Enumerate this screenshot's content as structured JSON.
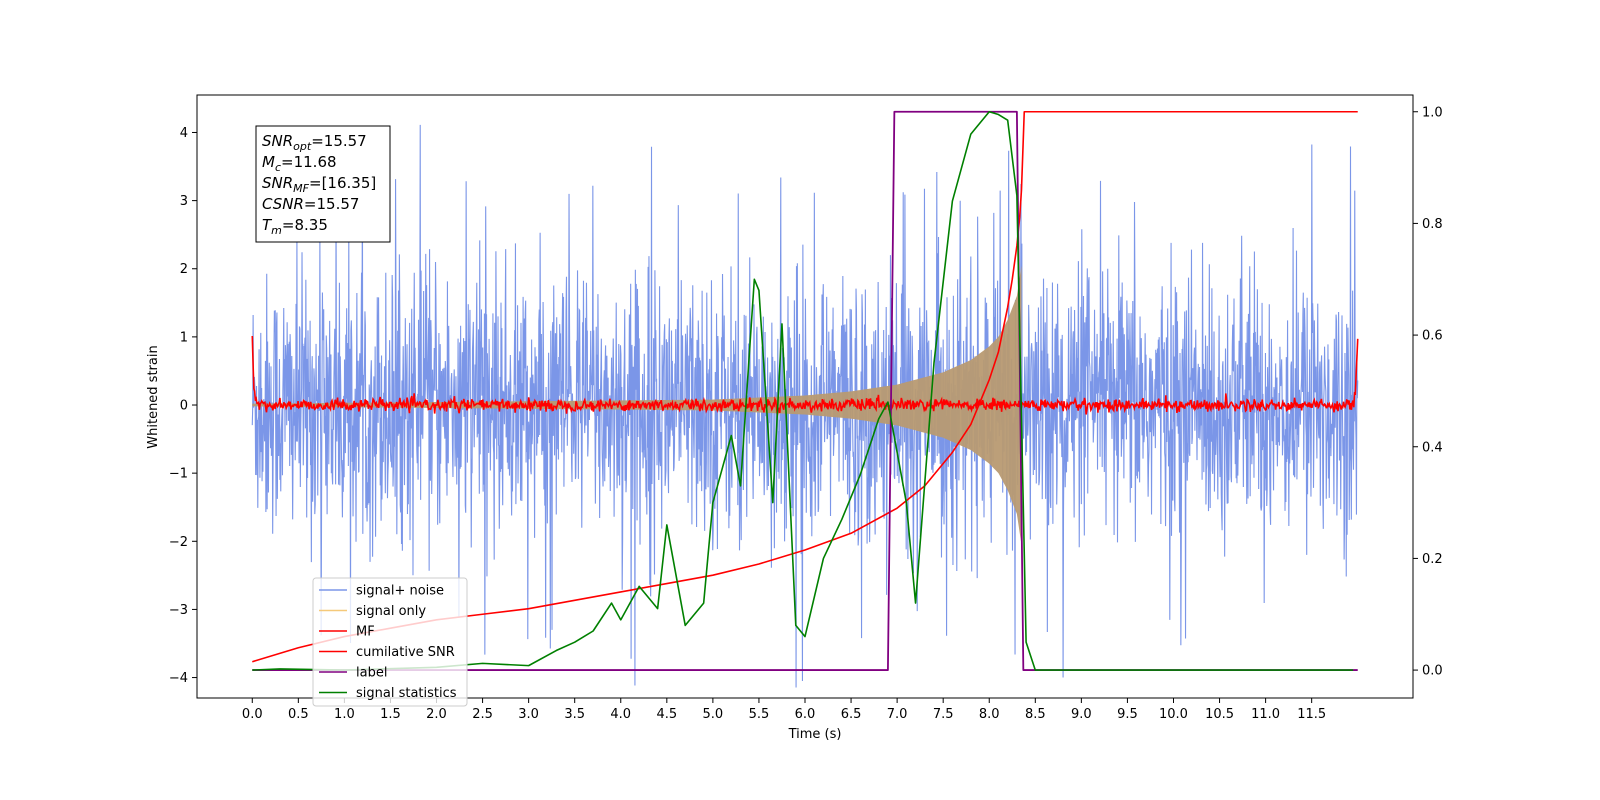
{
  "chart_data": {
    "type": "line",
    "xlabel": "Time (s)",
    "ylabel": "Whitened strain",
    "xlim": [
      -0.6,
      12.6
    ],
    "ylim": [
      -4.3,
      4.55
    ],
    "ylim_right": [
      -0.05,
      1.03
    ],
    "x_ticks": [
      0.0,
      0.5,
      1.0,
      1.5,
      2.0,
      2.5,
      3.0,
      3.5,
      4.0,
      4.5,
      5.0,
      5.5,
      6.0,
      6.5,
      7.0,
      7.5,
      8.0,
      8.5,
      9.0,
      9.5,
      10.0,
      10.5,
      11.0,
      11.5
    ],
    "x_tick_labels": [
      "0.0",
      "0.5",
      "1.0",
      "1.5",
      "2.0",
      "2.5",
      "3.0",
      "3.5",
      "4.0",
      "4.5",
      "5.0",
      "5.5",
      "6.0",
      "6.5",
      "7.0",
      "7.5",
      "8.0",
      "8.5",
      "9.0",
      "9.5",
      "10.0",
      "10.5",
      "11.0",
      "11.5"
    ],
    "y_ticks": [
      -4,
      -3,
      -2,
      -1,
      0,
      1,
      2,
      3,
      4
    ],
    "y_tick_labels": [
      "−4",
      "−3",
      "−2",
      "−1",
      "0",
      "1",
      "2",
      "3",
      "4"
    ],
    "y_ticks_right": [
      0.0,
      0.2,
      0.4,
      0.6,
      0.8,
      1.0
    ],
    "y_tick_labels_right": [
      "0.0",
      "0.2",
      "0.4",
      "0.6",
      "0.8",
      "1.0"
    ],
    "grid": false,
    "legend_position": "lower-left",
    "annotation": {
      "lines": [
        {
          "base": "SNR",
          "sub": "opt",
          "value": "=15.57"
        },
        {
          "base": "M",
          "sub": "c",
          "value": "=11.68"
        },
        {
          "base": "SNR",
          "sub": "MF",
          "value": "=[16.35]"
        },
        {
          "base": "CSNR",
          "sub": "",
          "value": "=15.57"
        },
        {
          "base": "T",
          "sub": "m",
          "value": "=8.35"
        }
      ]
    },
    "series": [
      {
        "name": "signal+ noise",
        "axis": "left",
        "color": "#7b96e8",
        "style": "noise-band",
        "x_range": [
          0.0,
          12.0
        ],
        "amplitude_typical": 1.8,
        "amplitude_peak": 4.15
      },
      {
        "name": "signal only",
        "axis": "left",
        "color": "#b89a72",
        "style": "chirp-envelope",
        "x": [
          0.0,
          5.0,
          6.0,
          6.5,
          7.0,
          7.5,
          7.8,
          8.0,
          8.1,
          8.2,
          8.3,
          8.35
        ],
        "envelope": [
          0.02,
          0.08,
          0.14,
          0.2,
          0.3,
          0.48,
          0.66,
          0.86,
          1.0,
          1.25,
          1.6,
          2.05
        ]
      },
      {
        "name": "MF",
        "axis": "left",
        "color": "#ff0000",
        "style": "noisy-flat",
        "x": [
          0.0,
          0.02,
          0.05,
          11.95,
          11.98,
          12.0
        ],
        "y": [
          1.0,
          0.2,
          0.0,
          0.0,
          0.3,
          0.95
        ]
      },
      {
        "name": "cumilative SNR",
        "axis": "right",
        "color": "#ff0000",
        "x": [
          0.0,
          0.5,
          1.0,
          1.5,
          2.0,
          2.5,
          3.0,
          3.5,
          4.0,
          4.5,
          5.0,
          5.5,
          6.0,
          6.5,
          7.0,
          7.3,
          7.6,
          7.8,
          8.0,
          8.1,
          8.2,
          8.25,
          8.3,
          8.33,
          8.35,
          8.38,
          8.4,
          9.0,
          10.0,
          11.0,
          12.0
        ],
        "y": [
          0.015,
          0.04,
          0.06,
          0.075,
          0.09,
          0.1,
          0.11,
          0.125,
          0.14,
          0.155,
          0.17,
          0.19,
          0.215,
          0.245,
          0.29,
          0.33,
          0.39,
          0.44,
          0.52,
          0.57,
          0.65,
          0.7,
          0.76,
          0.81,
          0.86,
          1.0,
          1.0,
          1.0,
          1.0,
          1.0,
          1.0
        ]
      },
      {
        "name": "label",
        "axis": "right",
        "color": "#800080",
        "x": [
          0.0,
          6.9,
          6.97,
          8.3,
          8.37,
          12.0
        ],
        "y": [
          0.0,
          0.0,
          1.0,
          1.0,
          0.0,
          0.0
        ]
      },
      {
        "name": "signal statistics",
        "axis": "right",
        "color": "#008000",
        "x": [
          0.0,
          0.3,
          1.0,
          2.0,
          2.5,
          3.0,
          3.3,
          3.5,
          3.7,
          3.9,
          4.0,
          4.2,
          4.4,
          4.5,
          4.7,
          4.9,
          5.0,
          5.2,
          5.3,
          5.45,
          5.5,
          5.65,
          5.75,
          5.9,
          6.0,
          6.2,
          6.4,
          6.6,
          6.8,
          6.9,
          7.1,
          7.2,
          7.4,
          7.6,
          7.8,
          8.0,
          8.1,
          8.2,
          8.3,
          8.4,
          8.5,
          9.0,
          10.0,
          11.0,
          11.95
        ],
        "y": [
          0.0,
          0.002,
          0.0,
          0.005,
          0.012,
          0.008,
          0.035,
          0.05,
          0.07,
          0.12,
          0.09,
          0.15,
          0.11,
          0.26,
          0.08,
          0.12,
          0.3,
          0.42,
          0.33,
          0.7,
          0.68,
          0.3,
          0.62,
          0.08,
          0.06,
          0.2,
          0.27,
          0.35,
          0.45,
          0.48,
          0.3,
          0.12,
          0.55,
          0.84,
          0.96,
          1.0,
          0.995,
          0.985,
          0.85,
          0.05,
          0.0,
          0.0,
          0.0,
          0.0,
          0.0
        ]
      }
    ]
  }
}
